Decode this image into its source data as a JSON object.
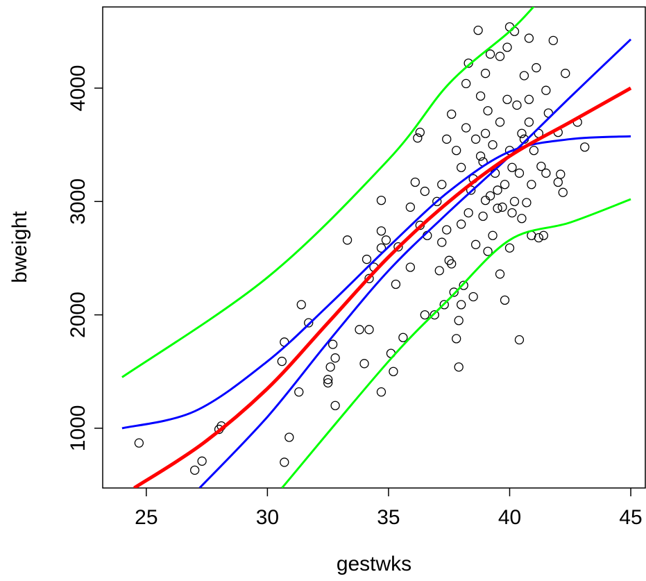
{
  "chart_data": {
    "type": "scatter",
    "x_label": "gestwks",
    "y_label": "bweight",
    "xlim": [
      23.2,
      45.6
    ],
    "ylim": [
      473,
      4716
    ],
    "xticks": [
      25,
      30,
      35,
      40,
      45
    ],
    "yticks": [
      1000,
      2000,
      3000,
      4000
    ],
    "points": {
      "color": "#000000",
      "x": [
        24.7,
        27,
        27.3,
        28,
        28.1,
        30.6,
        30.7,
        30.7,
        30.9,
        31.3,
        31.4,
        31.7,
        32.5,
        32.5,
        32.6,
        32.7,
        32.8,
        32.8,
        33.3,
        33.8,
        34,
        34.1,
        34.2,
        34.2,
        34.4,
        34.7,
        34.7,
        34.7,
        34.7,
        34.9,
        35.1,
        35.2,
        35.3,
        35.4,
        35.6,
        35.9,
        35.9,
        36.1,
        36.2,
        36.3,
        36.3,
        36.5,
        36.5,
        36.6,
        36.9,
        37,
        37.1,
        37.2,
        37.3,
        37.4,
        37.5,
        37.6,
        37.6,
        37.7,
        37.8,
        37.9,
        37.9,
        38,
        38,
        38.1,
        38.2,
        38.3,
        38.4,
        38.5,
        38.6,
        38.7,
        38.8,
        38.9,
        39,
        39,
        39.1,
        39.2,
        39.3,
        39.5,
        39.6,
        39.6,
        39.8,
        39.9,
        40,
        40,
        40.1,
        40.2,
        40.3,
        40.4,
        40.5,
        40.6,
        40.7,
        40.8,
        40.8,
        40.9,
        41,
        41.1,
        41.2,
        41.3,
        41.4,
        41.5,
        41.6,
        41.8,
        42,
        42,
        42.1,
        42.2,
        42.3,
        42.8,
        43.1,
        38.5,
        38.8,
        39,
        39.2,
        39.4,
        39.6,
        39.8,
        40,
        40.2,
        40.4,
        40.6,
        39.1,
        38.3,
        38.6,
        39.7,
        40.9,
        41.2,
        40.5,
        38,
        37.8,
        37.4,
        39.3,
        40.8,
        41.5,
        39.9,
        38.9,
        39.5,
        40.1,
        37.2,
        38.2
      ],
      "y": [
        870,
        630,
        710,
        990,
        1020,
        1590,
        1760,
        700,
        920,
        1320,
        2090,
        1930,
        1430,
        1400,
        1540,
        1740,
        1200,
        1620,
        2660,
        1870,
        1570,
        2490,
        2320,
        1870,
        2420,
        3010,
        2740,
        2590,
        1320,
        2660,
        1660,
        1500,
        2270,
        2600,
        1800,
        2950,
        2420,
        3170,
        3560,
        3610,
        2790,
        3090,
        2000,
        2700,
        2000,
        3000,
        2390,
        2640,
        2090,
        3550,
        2480,
        3770,
        2450,
        2200,
        1790,
        1540,
        1950,
        2090,
        3300,
        2260,
        4040,
        4220,
        3100,
        2160,
        2620,
        4510,
        3930,
        2870,
        4130,
        3010,
        2560,
        4300,
        3500,
        2940,
        2360,
        4280,
        2130,
        4360,
        4540,
        2590,
        3300,
        4500,
        3850,
        1780,
        3600,
        4110,
        2990,
        3700,
        4440,
        2700,
        3450,
        4180,
        2680,
        3310,
        2700,
        3980,
        3780,
        4420,
        3170,
        3610,
        3240,
        3080,
        4130,
        3700,
        3480,
        3200,
        3400,
        3600,
        3050,
        3250,
        3700,
        3150,
        3450,
        3000,
        3250,
        3550,
        3800,
        2900,
        3550,
        2950,
        3150,
        3600,
        2850,
        2800,
        3450,
        2750,
        2700,
        3900,
        3250,
        3900,
        3350,
        3100,
        2900,
        3150,
        3650
      ]
    },
    "series": [
      {
        "color": "#00ff00",
        "x": [
          24,
          30,
          35,
          37.5,
          40,
          41
        ],
        "values": [
          1450,
          2330,
          3370,
          4040,
          4500,
          4720
        ]
      },
      {
        "color": "#00ff00",
        "x": [
          30.6,
          35,
          37.5,
          40,
          42.5,
          45
        ],
        "values": [
          473,
          1590,
          2140,
          2660,
          2815,
          3020
        ]
      },
      {
        "color": "#0000ff",
        "x": [
          24,
          27,
          30,
          32.5,
          35,
          37.5,
          40,
          42.5,
          45
        ],
        "values": [
          1000,
          1150,
          1590,
          2080,
          2600,
          3090,
          3440,
          3550,
          3575
        ]
      },
      {
        "color": "#0000ff",
        "x": [
          27.2,
          30,
          32.5,
          35,
          37.5,
          40,
          42.5,
          45
        ],
        "values": [
          473,
          1100,
          1760,
          2390,
          2910,
          3400,
          3920,
          4430
        ]
      },
      {
        "color": "#ff0000",
        "x": [
          24.5,
          27.3,
          30,
          32.5,
          35,
          37.5,
          40,
          42.5,
          45
        ],
        "values": [
          473,
          860,
          1350,
          1930,
          2510,
          3000,
          3400,
          3700,
          4000
        ]
      }
    ]
  }
}
